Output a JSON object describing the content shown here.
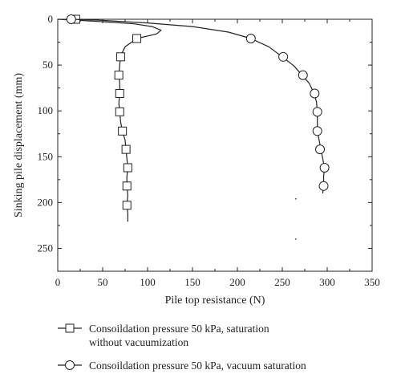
{
  "chart_data": {
    "type": "line",
    "title": "",
    "xlabel": "Pile top resistance (N)",
    "ylabel": "Sinking pile displacement (mm)",
    "xlim": [
      0,
      350
    ],
    "ylim": [
      0,
      275
    ],
    "y_inverted": true,
    "x_ticks": [
      0,
      50,
      100,
      150,
      200,
      250,
      300,
      350
    ],
    "y_ticks": [
      0,
      50,
      100,
      150,
      200,
      250
    ],
    "grid": false,
    "legend_position": "bottom",
    "series": [
      {
        "name": "Consoildation pressure 50 kPa, saturation without vacuumization",
        "legend_lines": [
          "Consoildation pressure 50 kPa, saturation",
          "without vacuumization"
        ],
        "marker": "square",
        "color": "#222222",
        "curve": [
          {
            "x": 0,
            "y": 0
          },
          {
            "x": 20,
            "y": 1
          },
          {
            "x": 55,
            "y": 3
          },
          {
            "x": 85,
            "y": 5
          },
          {
            "x": 105,
            "y": 8
          },
          {
            "x": 115,
            "y": 12
          },
          {
            "x": 110,
            "y": 16
          },
          {
            "x": 88,
            "y": 21
          },
          {
            "x": 75,
            "y": 30
          },
          {
            "x": 70,
            "y": 40
          },
          {
            "x": 69,
            "y": 50
          },
          {
            "x": 68,
            "y": 61
          },
          {
            "x": 69,
            "y": 70
          },
          {
            "x": 69,
            "y": 81
          },
          {
            "x": 68,
            "y": 92
          },
          {
            "x": 69,
            "y": 101
          },
          {
            "x": 70,
            "y": 112
          },
          {
            "x": 72,
            "y": 122
          },
          {
            "x": 75,
            "y": 132
          },
          {
            "x": 76,
            "y": 142
          },
          {
            "x": 77,
            "y": 152
          },
          {
            "x": 78,
            "y": 162
          },
          {
            "x": 77,
            "y": 172
          },
          {
            "x": 77,
            "y": 182
          },
          {
            "x": 78,
            "y": 192
          },
          {
            "x": 77,
            "y": 203
          },
          {
            "x": 78,
            "y": 212
          },
          {
            "x": 78,
            "y": 221
          }
        ],
        "points": [
          {
            "x": 20,
            "y": 0
          },
          {
            "x": 88,
            "y": 21
          },
          {
            "x": 70,
            "y": 41
          },
          {
            "x": 68,
            "y": 61
          },
          {
            "x": 69,
            "y": 81
          },
          {
            "x": 69,
            "y": 101
          },
          {
            "x": 72,
            "y": 122
          },
          {
            "x": 76,
            "y": 142
          },
          {
            "x": 78,
            "y": 162
          },
          {
            "x": 77,
            "y": 182
          },
          {
            "x": 77,
            "y": 203
          }
        ]
      },
      {
        "name": "Consoildation pressure 50 kPa, vacuum saturation",
        "legend_lines": [
          "Consoildation pressure 50 kPa, vacuum saturation"
        ],
        "marker": "circle",
        "color": "#222222",
        "curve": [
          {
            "x": 15,
            "y": 0
          },
          {
            "x": 45,
            "y": 1
          },
          {
            "x": 100,
            "y": 4
          },
          {
            "x": 150,
            "y": 8
          },
          {
            "x": 190,
            "y": 14
          },
          {
            "x": 215,
            "y": 21
          },
          {
            "x": 235,
            "y": 30
          },
          {
            "x": 250,
            "y": 41
          },
          {
            "x": 263,
            "y": 51
          },
          {
            "x": 272,
            "y": 61
          },
          {
            "x": 280,
            "y": 70
          },
          {
            "x": 285,
            "y": 80
          },
          {
            "x": 288,
            "y": 90
          },
          {
            "x": 289,
            "y": 101
          },
          {
            "x": 289,
            "y": 111
          },
          {
            "x": 289,
            "y": 122
          },
          {
            "x": 291,
            "y": 132
          },
          {
            "x": 293,
            "y": 142
          },
          {
            "x": 295,
            "y": 152
          },
          {
            "x": 297,
            "y": 162
          },
          {
            "x": 296,
            "y": 172
          },
          {
            "x": 296,
            "y": 182
          },
          {
            "x": 295,
            "y": 190
          }
        ],
        "points": [
          {
            "x": 15,
            "y": 0
          },
          {
            "x": 215,
            "y": 21
          },
          {
            "x": 251,
            "y": 41
          },
          {
            "x": 273,
            "y": 61
          },
          {
            "x": 286,
            "y": 81
          },
          {
            "x": 289,
            "y": 101
          },
          {
            "x": 289,
            "y": 122
          },
          {
            "x": 292,
            "y": 142
          },
          {
            "x": 297,
            "y": 162
          },
          {
            "x": 296,
            "y": 182
          }
        ]
      }
    ],
    "stray_marks": [
      {
        "x": 265,
        "y": 196
      },
      {
        "x": 265,
        "y": 240
      }
    ]
  }
}
